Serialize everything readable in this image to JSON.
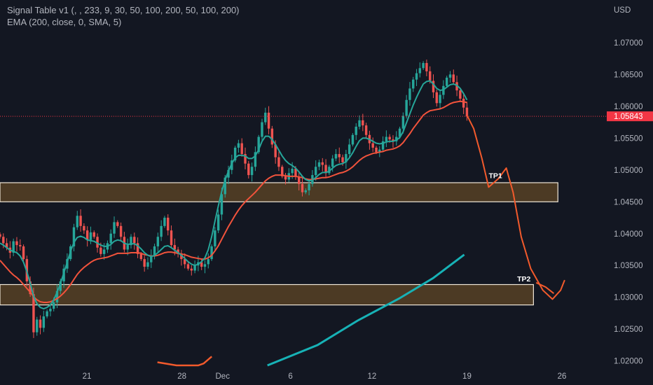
{
  "legend": {
    "line1": "Signal Table v1 (, , 233, 9, 30, 50, 100, 200, 50, 100, 200)",
    "line2": "EMA (200, close, 0, SMA, 5)"
  },
  "chart_data": {
    "type": "candlestick",
    "currency": "USD",
    "ylim": [
      1.0193,
      1.0767
    ],
    "yticks": [
      1.02,
      1.025,
      1.03,
      1.035,
      1.04,
      1.045,
      1.05,
      1.055,
      1.06,
      1.065,
      1.07
    ],
    "ytick_labels": [
      "1.02000",
      "1.02500",
      "1.03000",
      "1.03500",
      "1.04000",
      "1.04500",
      "1.05000",
      "1.05500",
      "1.06000",
      "1.06500",
      "1.07000"
    ],
    "xticks": [
      {
        "label": "21",
        "day": 21
      },
      {
        "label": "28",
        "day": 28
      },
      {
        "label": "Dec",
        "day": 31
      },
      {
        "label": "6",
        "day": 36
      },
      {
        "label": "12",
        "day": 42
      },
      {
        "label": "19",
        "day": 49
      },
      {
        "label": "26",
        "day": 56
      }
    ],
    "xlim": [
      14.6,
      59.3
    ],
    "current_price": {
      "value": 1.05843,
      "label": "1.05843"
    },
    "close_series": [
      1.0395,
      1.0385,
      1.0378,
      1.037,
      1.0388,
      1.0382,
      1.038,
      1.036,
      1.0325,
      1.0305,
      1.0245,
      1.0265,
      1.0252,
      1.027,
      1.0278,
      1.0282,
      1.0292,
      1.031,
      1.0325,
      1.0345,
      1.036,
      1.038,
      1.041,
      1.0428,
      1.0412,
      1.0405,
      1.039,
      1.0402,
      1.0395,
      1.0378,
      1.0368,
      1.0375,
      1.0385,
      1.04,
      1.0418,
      1.0412,
      1.0395,
      1.0375,
      1.0382,
      1.0395,
      1.0385,
      1.0368,
      1.036,
      1.0348,
      1.0355,
      1.0365,
      1.038,
      1.0395,
      1.0412,
      1.0425,
      1.0405,
      1.0382,
      1.0375,
      1.0368,
      1.036,
      1.0352,
      1.0345,
      1.0342,
      1.035,
      1.0355,
      1.0348,
      1.0352,
      1.036,
      1.038,
      1.0405,
      1.043,
      1.0462,
      1.0488,
      1.05,
      1.0515,
      1.0535,
      1.0542,
      1.0525,
      1.051,
      1.0492,
      1.0505,
      1.0528,
      1.0552,
      1.0575,
      1.059,
      1.0565,
      1.054,
      1.052,
      1.0505,
      1.049,
      1.0485,
      1.0495,
      1.0502,
      1.049,
      1.0478,
      1.0465,
      1.0468,
      1.0478,
      1.0492,
      1.0505,
      1.0512,
      1.0508,
      1.0495,
      1.0505,
      1.0518,
      1.0525,
      1.052,
      1.0512,
      1.0525,
      1.054,
      1.0555,
      1.0568,
      1.0578,
      1.057,
      1.0555,
      1.0542,
      1.0535,
      1.0528,
      1.0532,
      1.0545,
      1.0552,
      1.0548,
      1.0545,
      1.0552,
      1.0565,
      1.0585,
      1.061,
      1.0628,
      1.0642,
      1.0652,
      1.066,
      1.0668,
      1.0655,
      1.064,
      1.0622,
      1.0605,
      1.0618,
      1.0632,
      1.0645,
      1.065,
      1.0638,
      1.0625,
      1.0612,
      1.0598,
      1.0584
    ],
    "ema_fast_series": [
      1.0385,
      1.0382,
      1.0378,
      1.0374,
      1.0372,
      1.037,
      1.0365,
      1.0355,
      1.034,
      1.0322,
      1.0302,
      1.029,
      1.0284,
      1.0282,
      1.0284,
      1.0288,
      1.0296,
      1.0308,
      1.0322,
      1.0338,
      1.0355,
      1.0372,
      1.0386,
      1.0394,
      1.0396,
      1.0394,
      1.039,
      1.0389,
      1.0388,
      1.0385,
      1.0382,
      1.038,
      1.038,
      1.0383,
      1.0388,
      1.039,
      1.0389,
      1.0385,
      1.0383,
      1.0384,
      1.0384,
      1.0381,
      1.0376,
      1.037,
      1.0366,
      1.0364,
      1.0366,
      1.037,
      1.0375,
      1.038,
      1.0381,
      1.0378,
      1.0374,
      1.037,
      1.0366,
      1.0361,
      1.0356,
      1.0352,
      1.035,
      1.0352,
      1.0356,
      1.0362,
      1.0375,
      1.0395,
      1.042,
      1.0444,
      1.0466,
      1.0484,
      1.0498,
      1.051,
      1.0519,
      1.0523,
      1.0523,
      1.0522,
      1.0518,
      1.0518,
      1.0522,
      1.0532,
      1.0545,
      1.0553,
      1.0553,
      1.0548,
      1.054,
      1.0531,
      1.0522,
      1.0515,
      1.051,
      1.0507,
      1.0503,
      1.0497,
      1.049,
      1.0485,
      1.0483,
      1.0484,
      1.0488,
      1.0493,
      1.0496,
      1.0496,
      1.0498,
      1.0503,
      1.0507,
      1.0509,
      1.051,
      1.0513,
      1.0519,
      1.0527,
      1.0537,
      1.0546,
      1.055,
      1.055,
      1.0548,
      1.0545,
      1.0542,
      1.0541,
      1.0542,
      1.0544,
      1.0545,
      1.0545,
      1.0547,
      1.0551,
      1.056,
      1.0574,
      1.0588,
      1.0602,
      1.0614,
      1.0625,
      1.0635,
      1.0639,
      1.064,
      1.0635,
      1.0628,
      1.0625,
      1.0626,
      1.063,
      1.0634,
      1.0635,
      1.0633,
      1.0628,
      1.062,
      1.061
    ],
    "ema_slow_series": [
      1.0358,
      1.0352,
      1.0346,
      1.034,
      1.0335,
      1.0331,
      1.0326,
      1.032,
      1.0314,
      1.0308,
      1.0301,
      1.0296,
      1.0293,
      1.0292,
      1.0292,
      1.0293,
      1.0295,
      1.0298,
      1.0302,
      1.0307,
      1.0313,
      1.032,
      1.0328,
      1.0336,
      1.0342,
      1.0347,
      1.0351,
      1.0355,
      1.0358,
      1.036,
      1.0361,
      1.0362,
      1.0363,
      1.0365,
      1.0367,
      1.0369,
      1.0369,
      1.0369,
      1.0369,
      1.037,
      1.037,
      1.037,
      1.0369,
      1.0367,
      1.0366,
      1.0365,
      1.0365,
      1.0366,
      1.0368,
      1.037,
      1.0371,
      1.0371,
      1.037,
      1.0369,
      1.0368,
      1.0367,
      1.0365,
      1.0363,
      1.0362,
      1.0361,
      1.036,
      1.036,
      1.0362,
      1.0366,
      1.0373,
      1.0381,
      1.0391,
      1.0401,
      1.0411,
      1.042,
      1.0429,
      1.0437,
      1.0444,
      1.045,
      1.0455,
      1.046,
      1.0465,
      1.0471,
      1.0477,
      1.0483,
      1.0487,
      1.049,
      1.0492,
      1.0492,
      1.0492,
      1.0491,
      1.049,
      1.049,
      1.049,
      1.0489,
      1.0488,
      1.0486,
      1.0485,
      1.0485,
      1.0486,
      1.0487,
      1.0488,
      1.0488,
      1.0489,
      1.0491,
      1.0493,
      1.0495,
      1.0496,
      1.0498,
      1.0501,
      1.0505,
      1.051,
      1.0515,
      1.0519,
      1.0522,
      1.0524,
      1.0526,
      1.0527,
      1.0528,
      1.0529,
      1.0531,
      1.0532,
      1.0533,
      1.0535,
      1.0538,
      1.0543,
      1.055,
      1.0557,
      1.0565,
      1.0572,
      1.0579,
      1.0586,
      1.059,
      1.0593,
      1.0594,
      1.0595,
      1.0596,
      1.0598,
      1.0601,
      1.0604,
      1.0606,
      1.0607,
      1.0608,
      1.0607,
      1.0606
    ],
    "ema_200": [
      {
        "day": 34.3,
        "value": 1.0193
      },
      {
        "day": 38.0,
        "value": 1.0225
      },
      {
        "day": 41.0,
        "value": 1.0264
      },
      {
        "day": 44.0,
        "value": 1.0298
      },
      {
        "day": 46.5,
        "value": 1.033
      },
      {
        "day": 48.8,
        "value": 1.0367
      }
    ],
    "ema_200_left_fragment": [
      {
        "day": 26.2,
        "value": 1.0198
      },
      {
        "day": 27.6,
        "value": 1.0193
      },
      {
        "day": 29.2,
        "value": 1.0193
      },
      {
        "day": 29.6,
        "value": 1.0196
      },
      {
        "day": 30.2,
        "value": 1.0207
      }
    ],
    "zones": [
      {
        "name": "upper-zone",
        "label": "TP1",
        "low": 1.045,
        "high": 1.048,
        "day_start": 14.6,
        "day_end": 55.7
      },
      {
        "name": "lower-zone",
        "label": "TP2",
        "low": 1.0288,
        "high": 1.032,
        "day_start": 14.6,
        "day_end": 53.9
      }
    ],
    "zone_labels": [
      {
        "text": "TP1",
        "day": 50.6,
        "value": 1.0487
      },
      {
        "text": "TP2",
        "day": 52.7,
        "value": 1.0325
      }
    ],
    "projection": [
      {
        "day": 49.0,
        "value": 1.0586
      },
      {
        "day": 49.5,
        "value": 1.0565
      },
      {
        "day": 50.1,
        "value": 1.0518
      },
      {
        "day": 50.6,
        "value": 1.0473
      },
      {
        "day": 51.3,
        "value": 1.0486
      },
      {
        "day": 51.9,
        "value": 1.0503
      },
      {
        "day": 52.4,
        "value": 1.0465
      },
      {
        "day": 53.0,
        "value": 1.0395
      },
      {
        "day": 53.7,
        "value": 1.0345
      },
      {
        "day": 54.6,
        "value": 1.0311
      },
      {
        "day": 55.3,
        "value": 1.0297
      },
      {
        "day": 55.9,
        "value": 1.0311
      },
      {
        "day": 56.2,
        "value": 1.0327
      }
    ],
    "projection_tp2_branch": [
      {
        "day": 54.1,
        "value": 1.0323
      },
      {
        "day": 54.8,
        "value": 1.0316
      },
      {
        "day": 55.4,
        "value": 1.0306
      }
    ],
    "series": [
      {
        "name": "Signal Table v1 (, , 233, 9, 30, 50, 100, 200, 50, 100, 200)"
      },
      {
        "name": "EMA (200, close, 0, SMA, 5)"
      }
    ]
  },
  "colors": {
    "background": "#131722",
    "up": "#26a69a",
    "down": "#ef5350",
    "ema_fast": "#26a69a",
    "ema_slow": "#f2533c",
    "ema_200": "#17b2b6",
    "projection": "#f25a2c",
    "zone_fill": "#4c3a24",
    "zone_border": "#f0e7d8",
    "price_tag": "#f23645",
    "axis_text": "#b2b5be"
  }
}
